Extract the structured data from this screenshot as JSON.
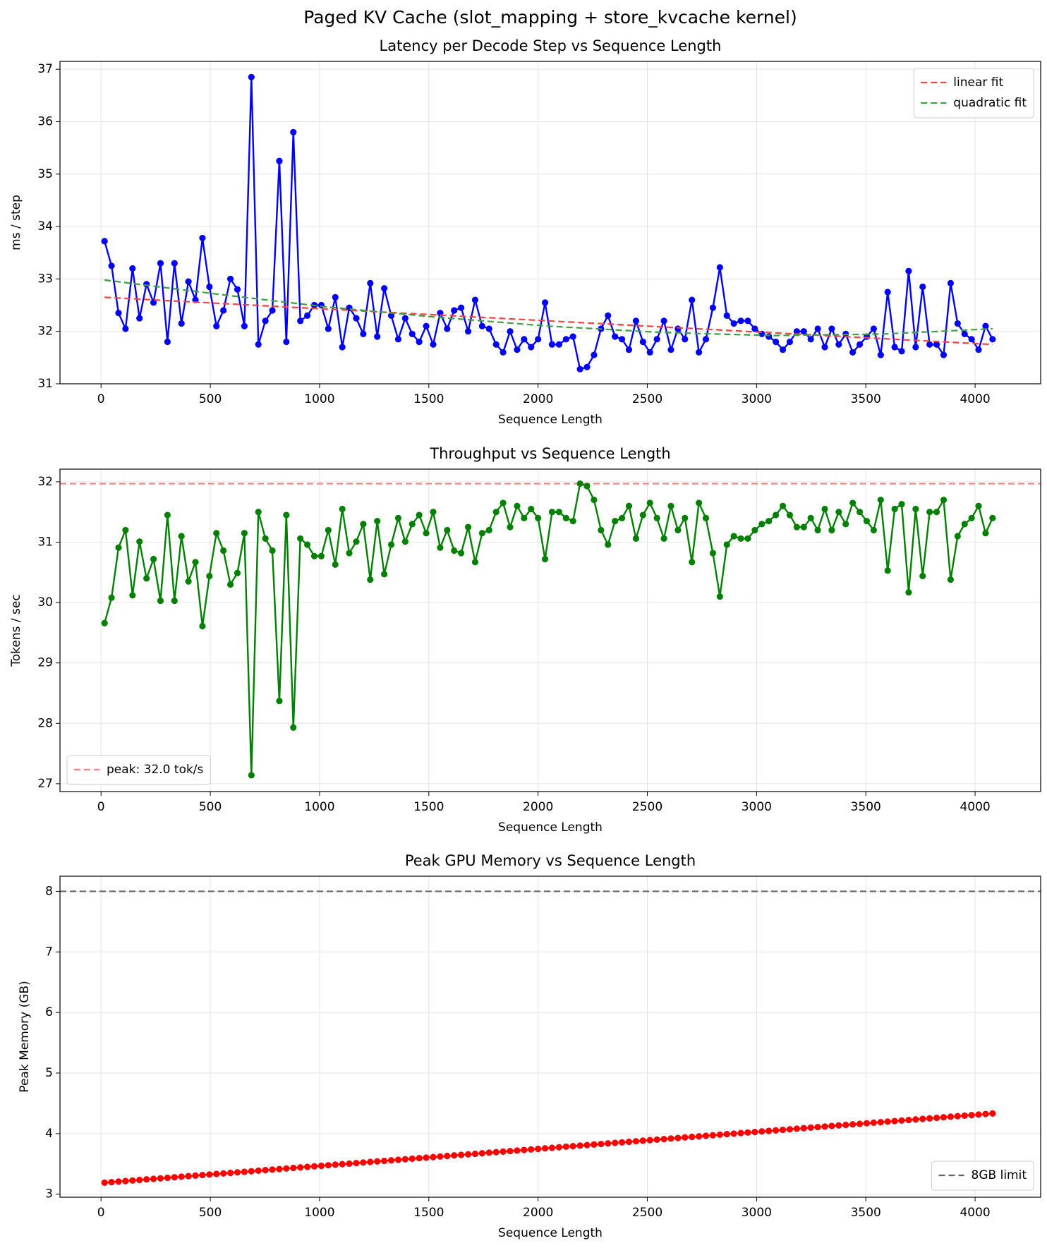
{
  "title": "Paged KV Cache (slot_mapping + store_kvcache kernel)",
  "chart_data": [
    {
      "type": "line",
      "title": "Latency per Decode Step vs Sequence Length",
      "xlabel": "Sequence Length",
      "ylabel": "ms / step",
      "xlim": [
        -188,
        4300
      ],
      "xticks": [
        0,
        500,
        1000,
        1500,
        2000,
        2500,
        3000,
        3500,
        4000
      ],
      "ylim": [
        31.0,
        37.15
      ],
      "yticks": [
        31,
        32,
        33,
        34,
        35,
        36,
        37
      ],
      "grid": true,
      "legend": "upper right",
      "series": [
        {
          "color": "#0000ff",
          "marker": true,
          "style": "solid",
          "x": [
            16,
            48,
            80,
            112,
            144,
            176,
            208,
            240,
            272,
            304,
            336,
            368,
            400,
            432,
            464,
            496,
            528,
            560,
            592,
            624,
            656,
            688,
            720,
            752,
            784,
            816,
            848,
            880,
            912,
            944,
            976,
            1008,
            1040,
            1072,
            1104,
            1136,
            1168,
            1200,
            1232,
            1264,
            1296,
            1328,
            1360,
            1392,
            1424,
            1456,
            1488,
            1520,
            1552,
            1584,
            1616,
            1648,
            1680,
            1712,
            1744,
            1776,
            1808,
            1840,
            1872,
            1904,
            1936,
            1968,
            2000,
            2032,
            2064,
            2096,
            2128,
            2160,
            2192,
            2224,
            2256,
            2288,
            2320,
            2352,
            2384,
            2416,
            2448,
            2480,
            2512,
            2544,
            2576,
            2608,
            2640,
            2672,
            2704,
            2736,
            2768,
            2800,
            2832,
            2864,
            2896,
            2928,
            2960,
            2992,
            3024,
            3056,
            3088,
            3120,
            3152,
            3184,
            3216,
            3248,
            3280,
            3312,
            3344,
            3376,
            3408,
            3440,
            3472,
            3504,
            3536,
            3568,
            3600,
            3632,
            3664,
            3696,
            3728,
            3760,
            3792,
            3824,
            3856,
            3888,
            3920,
            3952,
            3984,
            4016,
            4048,
            4080
          ],
          "values": [
            33.72,
            33.25,
            32.35,
            32.05,
            33.2,
            32.25,
            32.9,
            32.55,
            33.3,
            31.8,
            33.3,
            32.15,
            32.95,
            32.6,
            33.78,
            32.85,
            32.1,
            32.4,
            33.0,
            32.8,
            32.1,
            36.85,
            31.75,
            32.2,
            32.4,
            35.25,
            31.8,
            35.8,
            32.2,
            32.3,
            32.5,
            32.5,
            32.05,
            32.65,
            31.7,
            32.45,
            32.25,
            31.95,
            32.92,
            31.9,
            32.82,
            32.3,
            31.85,
            32.25,
            31.95,
            31.8,
            32.1,
            31.75,
            32.35,
            32.05,
            32.4,
            32.45,
            32.0,
            32.6,
            32.1,
            32.05,
            31.75,
            31.6,
            32.0,
            31.65,
            31.85,
            31.7,
            31.85,
            32.55,
            31.75,
            31.75,
            31.85,
            31.9,
            31.28,
            31.32,
            31.55,
            32.05,
            32.3,
            31.9,
            31.85,
            31.65,
            32.2,
            31.8,
            31.6,
            31.85,
            32.2,
            31.65,
            32.05,
            31.85,
            32.6,
            31.6,
            31.85,
            32.45,
            33.22,
            32.3,
            32.15,
            32.2,
            32.2,
            32.05,
            31.95,
            31.9,
            31.8,
            31.65,
            31.8,
            32.0,
            32.0,
            31.85,
            32.05,
            31.7,
            32.05,
            31.75,
            31.95,
            31.6,
            31.75,
            31.9,
            32.05,
            31.55,
            32.75,
            31.7,
            31.62,
            33.15,
            31.7,
            32.85,
            31.75,
            31.75,
            31.55,
            32.92,
            32.15,
            31.95,
            31.85,
            31.65,
            32.1,
            31.85
          ]
        },
        {
          "name": "linear fit",
          "color": "#ff4040",
          "style": "dashed",
          "x": [
            16,
            4080
          ],
          "values": [
            32.65,
            31.75
          ]
        },
        {
          "name": "quadratic fit",
          "color": "#40a040",
          "style": "dashed",
          "x": [
            16,
            512,
            1024,
            1536,
            2048,
            2560,
            3072,
            3584,
            4080
          ],
          "values": [
            32.98,
            32.72,
            32.47,
            32.27,
            32.1,
            31.98,
            31.92,
            31.95,
            32.05
          ]
        }
      ]
    },
    {
      "type": "line",
      "title": "Throughput vs Sequence Length",
      "xlabel": "Sequence Length",
      "ylabel": "Tokens / sec",
      "xlim": [
        -188,
        4300
      ],
      "xticks": [
        0,
        500,
        1000,
        1500,
        2000,
        2500,
        3000,
        3500,
        4000
      ],
      "ylim": [
        26.87,
        32.21
      ],
      "yticks": [
        27,
        28,
        29,
        30,
        31,
        32
      ],
      "grid": true,
      "legend": "lower left",
      "series": [
        {
          "color": "#008000",
          "marker": true,
          "style": "solid",
          "x": [
            16,
            48,
            80,
            112,
            144,
            176,
            208,
            240,
            272,
            304,
            336,
            368,
            400,
            432,
            464,
            496,
            528,
            560,
            592,
            624,
            656,
            688,
            720,
            752,
            784,
            816,
            848,
            880,
            912,
            944,
            976,
            1008,
            1040,
            1072,
            1104,
            1136,
            1168,
            1200,
            1232,
            1264,
            1296,
            1328,
            1360,
            1392,
            1424,
            1456,
            1488,
            1520,
            1552,
            1584,
            1616,
            1648,
            1680,
            1712,
            1744,
            1776,
            1808,
            1840,
            1872,
            1904,
            1936,
            1968,
            2000,
            2032,
            2064,
            2096,
            2128,
            2160,
            2192,
            2224,
            2256,
            2288,
            2320,
            2352,
            2384,
            2416,
            2448,
            2480,
            2512,
            2544,
            2576,
            2608,
            2640,
            2672,
            2704,
            2736,
            2768,
            2800,
            2832,
            2864,
            2896,
            2928,
            2960,
            2992,
            3024,
            3056,
            3088,
            3120,
            3152,
            3184,
            3216,
            3248,
            3280,
            3312,
            3344,
            3376,
            3408,
            3440,
            3472,
            3504,
            3536,
            3568,
            3600,
            3632,
            3664,
            3696,
            3728,
            3760,
            3792,
            3824,
            3856,
            3888,
            3920,
            3952,
            3984,
            4016,
            4048,
            4080
          ],
          "values": [
            29.66,
            30.08,
            30.91,
            31.2,
            30.12,
            31.01,
            30.4,
            30.72,
            30.03,
            31.45,
            30.03,
            31.1,
            30.35,
            30.67,
            29.61,
            30.44,
            31.15,
            30.86,
            30.3,
            30.49,
            31.15,
            27.14,
            31.5,
            31.06,
            30.86,
            28.37,
            31.45,
            27.93,
            31.06,
            30.96,
            30.77,
            30.77,
            31.2,
            30.63,
            31.55,
            30.82,
            31.01,
            31.3,
            30.38,
            31.35,
            30.47,
            30.96,
            31.4,
            31.01,
            31.3,
            31.45,
            31.15,
            31.5,
            30.91,
            31.2,
            30.86,
            30.82,
            31.25,
            30.67,
            31.15,
            31.2,
            31.5,
            31.65,
            31.25,
            31.6,
            31.4,
            31.55,
            31.4,
            30.72,
            31.5,
            31.5,
            31.4,
            31.35,
            31.97,
            31.93,
            31.7,
            31.2,
            30.96,
            31.35,
            31.4,
            31.6,
            31.06,
            31.45,
            31.65,
            31.4,
            31.06,
            31.6,
            31.2,
            31.4,
            30.67,
            31.65,
            31.4,
            30.82,
            30.1,
            30.96,
            31.1,
            31.06,
            31.06,
            31.2,
            31.3,
            31.35,
            31.45,
            31.6,
            31.45,
            31.25,
            31.25,
            31.4,
            31.2,
            31.55,
            31.2,
            31.5,
            31.3,
            31.65,
            31.5,
            31.35,
            31.2,
            31.7,
            30.53,
            31.55,
            31.63,
            30.17,
            31.55,
            30.44,
            31.5,
            31.5,
            31.7,
            30.38,
            31.1,
            31.3,
            31.4,
            31.6,
            31.15,
            31.4
          ]
        }
      ],
      "hlines": [
        {
          "name": "peak: 32.0 tok/s",
          "value": 31.97,
          "color": "#ff8080"
        }
      ]
    },
    {
      "type": "line",
      "title": "Peak GPU Memory vs Sequence Length",
      "xlabel": "Sequence Length",
      "ylabel": "Peak Memory (GB)",
      "xlim": [
        -188,
        4300
      ],
      "xticks": [
        0,
        500,
        1000,
        1500,
        2000,
        2500,
        3000,
        3500,
        4000
      ],
      "ylim": [
        2.95,
        8.25
      ],
      "yticks": [
        3,
        4,
        5,
        6,
        7,
        8
      ],
      "grid": true,
      "legend": "lower right",
      "series": [
        {
          "color": "#ff0000",
          "marker": true,
          "style": "solid",
          "x": [
            16,
            48,
            80,
            112,
            144,
            176,
            208,
            240,
            272,
            304,
            336,
            368,
            400,
            432,
            464,
            496,
            528,
            560,
            592,
            624,
            656,
            688,
            720,
            752,
            784,
            816,
            848,
            880,
            912,
            944,
            976,
            1008,
            1040,
            1072,
            1104,
            1136,
            1168,
            1200,
            1232,
            1264,
            1296,
            1328,
            1360,
            1392,
            1424,
            1456,
            1488,
            1520,
            1552,
            1584,
            1616,
            1648,
            1680,
            1712,
            1744,
            1776,
            1808,
            1840,
            1872,
            1904,
            1936,
            1968,
            2000,
            2032,
            2064,
            2096,
            2128,
            2160,
            2192,
            2224,
            2256,
            2288,
            2320,
            2352,
            2384,
            2416,
            2448,
            2480,
            2512,
            2544,
            2576,
            2608,
            2640,
            2672,
            2704,
            2736,
            2768,
            2800,
            2832,
            2864,
            2896,
            2928,
            2960,
            2992,
            3024,
            3056,
            3088,
            3120,
            3152,
            3184,
            3216,
            3248,
            3280,
            3312,
            3344,
            3376,
            3408,
            3440,
            3472,
            3504,
            3536,
            3568,
            3600,
            3632,
            3664,
            3696,
            3728,
            3760,
            3792,
            3824,
            3856,
            3888,
            3920,
            3952,
            3984,
            4016,
            4048,
            4080
          ],
          "values": [
            3.19,
            3.199,
            3.208,
            3.217,
            3.226,
            3.235,
            3.244,
            3.253,
            3.262,
            3.271,
            3.28,
            3.289,
            3.298,
            3.307,
            3.316,
            3.325,
            3.334,
            3.343,
            3.352,
            3.361,
            3.37,
            3.379,
            3.388,
            3.397,
            3.406,
            3.415,
            3.424,
            3.433,
            3.442,
            3.451,
            3.46,
            3.469,
            3.478,
            3.487,
            3.496,
            3.505,
            3.514,
            3.523,
            3.532,
            3.541,
            3.55,
            3.559,
            3.568,
            3.577,
            3.586,
            3.595,
            3.604,
            3.613,
            3.622,
            3.631,
            3.64,
            3.649,
            3.658,
            3.667,
            3.676,
            3.685,
            3.694,
            3.703,
            3.712,
            3.721,
            3.73,
            3.739,
            3.748,
            3.757,
            3.766,
            3.775,
            3.784,
            3.793,
            3.802,
            3.811,
            3.82,
            3.829,
            3.838,
            3.847,
            3.856,
            3.865,
            3.874,
            3.883,
            3.892,
            3.901,
            3.91,
            3.919,
            3.928,
            3.937,
            3.946,
            3.955,
            3.964,
            3.973,
            3.982,
            3.991,
            4.0,
            4.009,
            4.018,
            4.027,
            4.036,
            4.045,
            4.054,
            4.063,
            4.072,
            4.081,
            4.09,
            4.099,
            4.108,
            4.117,
            4.126,
            4.135,
            4.144,
            4.153,
            4.162,
            4.171,
            4.18,
            4.189,
            4.198,
            4.207,
            4.216,
            4.225,
            4.234,
            4.243,
            4.252,
            4.261,
            4.27,
            4.279,
            4.288,
            4.297,
            4.306,
            4.315,
            4.324,
            4.333
          ]
        }
      ],
      "hlines": [
        {
          "name": "8GB limit",
          "value": 8,
          "color": "#666666"
        }
      ]
    }
  ]
}
